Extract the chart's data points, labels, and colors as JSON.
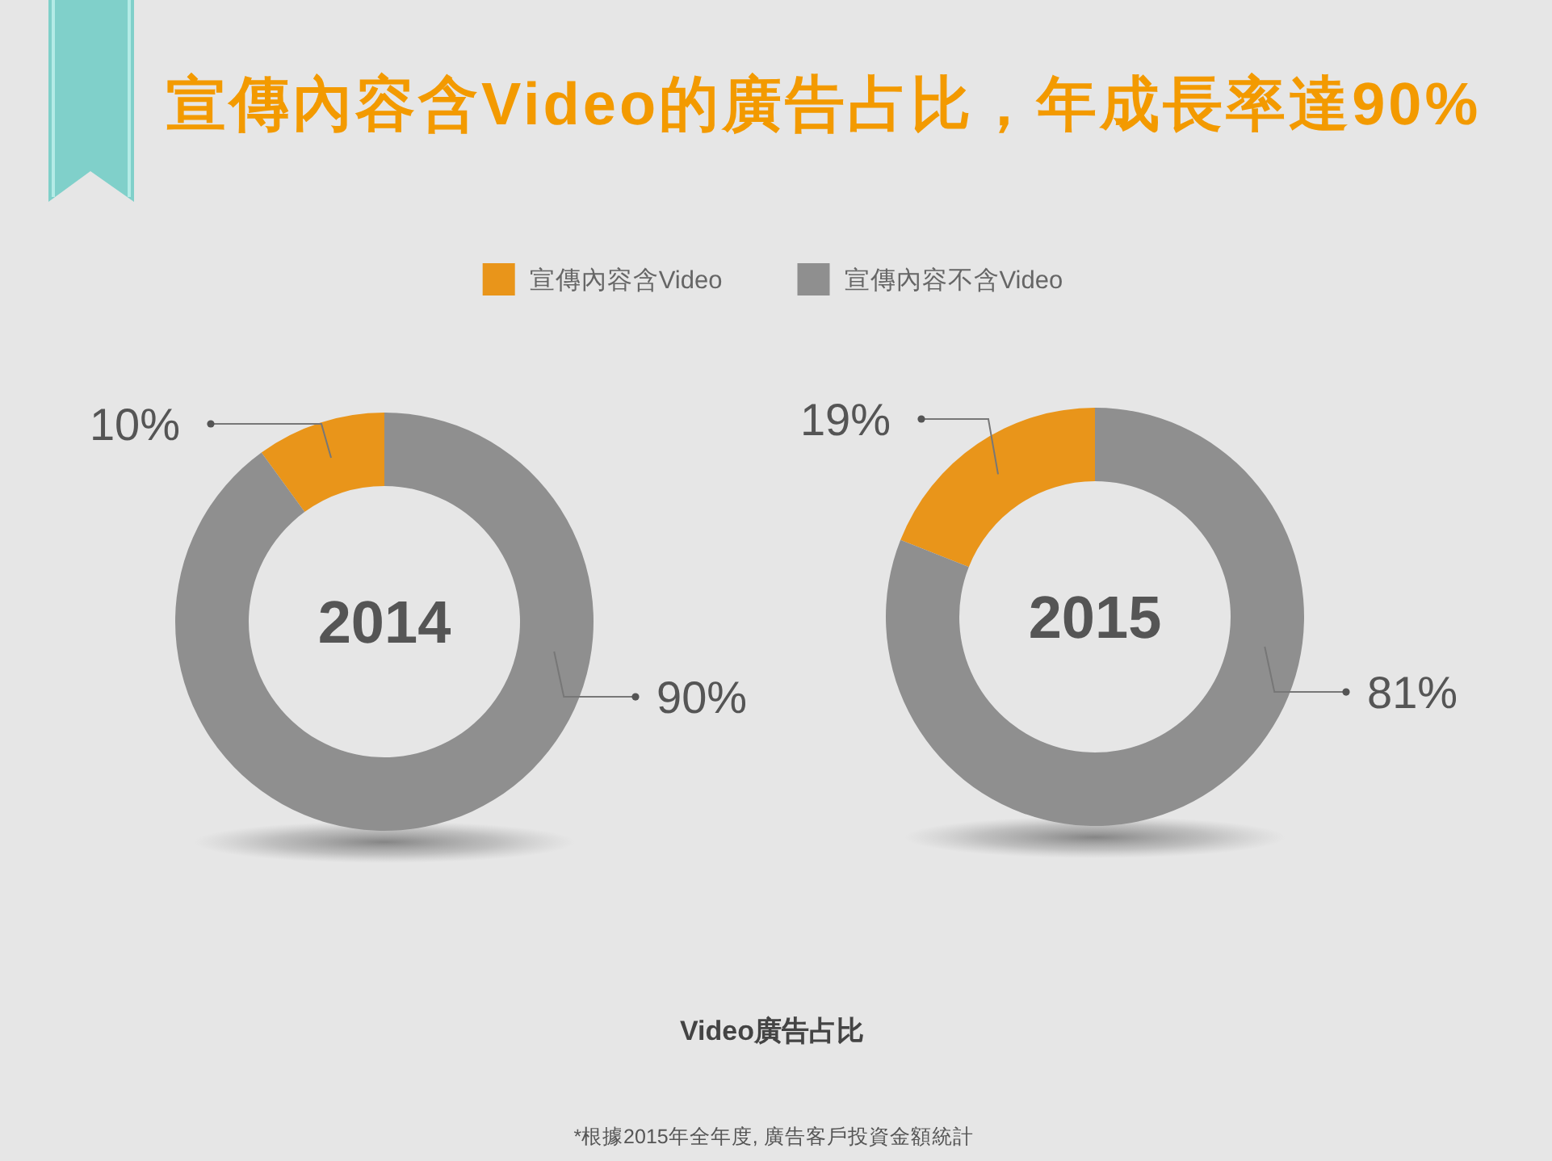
{
  "chart_data": [
    {
      "type": "donut",
      "title": "宣傳內容含Video的廣告占比，年成長率達90%",
      "categories": [
        "宣傳內容含Video",
        "宣傳內容不含Video"
      ],
      "values": [
        10,
        90
      ],
      "colors": [
        "#e9951a",
        "#8f8f8f"
      ],
      "value_labels": [
        "10%",
        "90%"
      ],
      "legend": "top",
      "annotations": [
        "2014"
      ]
    },
    {
      "type": "donut",
      "categories": [
        null,
        null
      ],
      "values": [
        19,
        81
      ],
      "colors": [
        "#e9951a",
        "#8f8f8f"
      ],
      "value_labels": [
        "19%",
        "81%"
      ],
      "annotations": [
        "2015",
        "Video廣告占比",
        "*根據2015年全年度, 廣告客戶投資金額統計"
      ]
    }
  ]
}
